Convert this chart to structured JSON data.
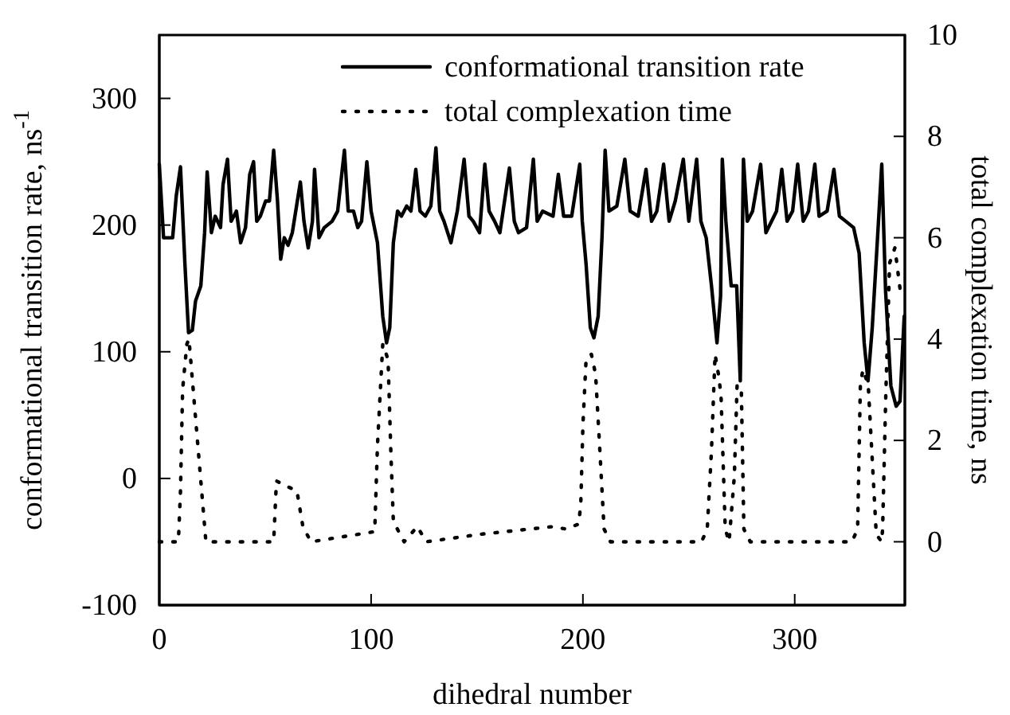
{
  "chart_data": {
    "type": "line",
    "xlabel": "dihedral number",
    "ylabel": "conformational transition rate, ns$^{-1}$",
    "y2label": "total complexation time, ns",
    "xlim": [
      0,
      352
    ],
    "xticks": [
      0,
      100,
      200,
      300
    ],
    "ylim": [
      -100,
      350
    ],
    "yticks": [
      -100,
      0,
      100,
      200,
      300
    ],
    "y2lim": [
      -1.25,
      10
    ],
    "y2ticks": [
      0,
      2,
      4,
      6,
      8,
      10
    ],
    "legend": "top right",
    "grid": false,
    "series": [
      {
        "name": "conformational transition rate",
        "color": "#000000",
        "line_style": "solid",
        "x": [
          0,
          2,
          6.3,
          8,
          10,
          12.1,
          13.8,
          15.6,
          17.1,
          19.6,
          21.4,
          22.6,
          24.6,
          26.4,
          28.9,
          30.1,
          32.2,
          33.9,
          36.4,
          38.4,
          40.7,
          42.7,
          44.5,
          46,
          47.7,
          50.2,
          52,
          54,
          55.8,
          57.3,
          59,
          60.8,
          62.8,
          66.6,
          68.3,
          70.3,
          72.3,
          73.3,
          75.4,
          77.9,
          81.6,
          84.2,
          87.4,
          89.2,
          91.7,
          93.7,
          95.5,
          98,
          100,
          103,
          105.5,
          107.3,
          108.8,
          110.5,
          112.5,
          114.3,
          116.8,
          118.8,
          121.1,
          123.1,
          125.6,
          128.2,
          130.6,
          132.4,
          134.4,
          137.7,
          140.7,
          143.9,
          146.2,
          148.2,
          151.2,
          153.7,
          155.7,
          158.3,
          160.8,
          165.3,
          167.6,
          169.6,
          173.4,
          176.6,
          178.4,
          181,
          185.9,
          188.4,
          190.9,
          194.7,
          198.5,
          199.7,
          201.5,
          203.5,
          205.2,
          207.2,
          209,
          210.5,
          212.3,
          216,
          219.8,
          222.3,
          226.1,
          229.8,
          232.4,
          234.9,
          238.1,
          240.7,
          243.6,
          247.4,
          250,
          253.7,
          255.7,
          258.2,
          260.7,
          263.3,
          265,
          265.8,
          267.5,
          270,
          272.6,
          274.3,
          275.8,
          277.6,
          280.1,
          283.9,
          286.4,
          291.4,
          293.9,
          296.4,
          299,
          301.4,
          304,
          306.5,
          309.5,
          311.5,
          315.3,
          318.5,
          321.1,
          324.1,
          327.8,
          330.4,
          332.8,
          334.6,
          336.6,
          339.1,
          341.1,
          342.9,
          345.4,
          347.9,
          349.7,
          351.7
        ],
        "values": [
          248,
          190,
          190,
          223,
          246,
          169,
          115,
          117,
          140,
          152,
          194,
          242,
          194,
          207,
          198,
          232,
          252,
          203,
          211,
          186,
          198,
          240,
          250,
          203,
          207,
          219,
          219,
          259,
          219,
          173,
          190,
          184,
          194,
          234,
          203,
          182,
          203,
          244,
          190,
          198,
          203,
          211,
          259,
          211,
          211,
          198,
          203,
          250,
          211,
          186,
          128,
          107,
          119,
          186,
          211,
          207,
          215,
          211,
          244,
          211,
          207,
          215,
          261,
          211,
          203,
          186,
          211,
          252,
          207,
          203,
          194,
          248,
          211,
          203,
          194,
          245,
          203,
          194,
          198,
          252,
          203,
          211,
          207,
          240,
          207,
          207,
          248,
          203,
          169,
          119,
          111,
          128,
          190,
          259,
          211,
          215,
          252,
          211,
          207,
          244,
          203,
          211,
          248,
          203,
          219,
          252,
          203,
          252,
          203,
          190,
          152,
          107,
          144,
          252,
          203,
          152,
          152,
          77,
          252,
          203,
          211,
          248,
          194,
          211,
          244,
          203,
          211,
          248,
          203,
          211,
          248,
          207,
          211,
          244,
          207,
          203,
          198,
          178,
          107,
          77,
          119,
          190,
          248,
          148,
          73,
          57,
          61,
          128
        ]
      },
      {
        "name": "total complexation time",
        "color": "#000000",
        "line_style": "dotted",
        "axis": "y2",
        "x": [
          0,
          9,
          10,
          11,
          13,
          14,
          16,
          18,
          20,
          22,
          54,
          55.3,
          60,
          65,
          67.8,
          71.6,
          101.7,
          103,
          105.5,
          108,
          109.3,
          110.5,
          115.6,
          121.8,
          126,
          152,
          185.9,
          192,
          198,
          199,
          200,
          201.5,
          204,
          206,
          208,
          210,
          213,
          256,
          258.7,
          260.7,
          262.4,
          264,
          265.2,
          267.2,
          269,
          271.5,
          272.8,
          274.8,
          276,
          279,
          327,
          329.7,
          331,
          332.2,
          334.7,
          338.5,
          341,
          341.5,
          343,
          344.8,
          347.3,
          350
        ],
        "values": [
          0,
          0,
          1,
          3,
          3.9,
          4,
          3,
          2,
          1,
          0,
          0,
          1.2,
          1.1,
          1,
          0.3,
          0,
          0.2,
          1.9,
          3.9,
          3.6,
          1.8,
          0.4,
          0,
          0.3,
          0,
          0.15,
          0.3,
          0.25,
          0.35,
          0.75,
          2.3,
          3.6,
          3.7,
          3.3,
          1.8,
          0.25,
          0,
          0,
          0.25,
          1.8,
          3.7,
          3.3,
          2.9,
          0.25,
          0,
          1.3,
          3.1,
          3,
          0.25,
          0,
          0,
          0.25,
          3.1,
          3.4,
          3.1,
          0.15,
          0,
          0.25,
          2.9,
          5.5,
          5.8,
          4.9
        ]
      }
    ]
  }
}
